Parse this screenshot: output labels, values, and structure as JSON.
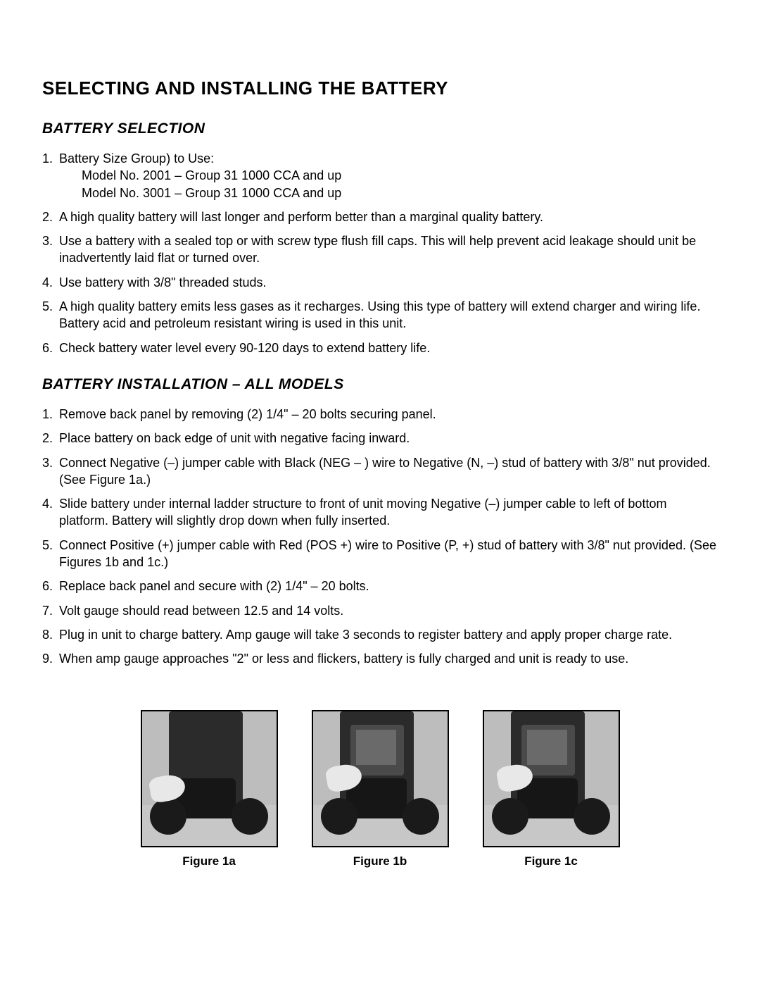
{
  "page": {
    "title": "SELECTING AND INSTALLING THE BATTERY"
  },
  "section1": {
    "heading": "BATTERY SELECTION",
    "items": [
      {
        "text": "Battery Size Group) to Use:",
        "sub": [
          "Model No. 2001 – Group 31 1000 CCA and up",
          "Model No. 3001 – Group 31 1000 CCA and up"
        ]
      },
      {
        "text": "A high quality battery will last longer and perform better than a marginal quality battery."
      },
      {
        "text": "Use a battery with a sealed top or with screw type flush fill caps. This will help prevent acid leakage should unit be inadvertently laid flat or turned over."
      },
      {
        "text": "Use battery with 3/8\" threaded studs."
      },
      {
        "text": "A high quality battery emits less gases as it recharges. Using this type of battery will extend charger and wiring life. Battery acid and petroleum resistant wiring is used in this unit."
      },
      {
        "text": "Check battery water level every 90-120 days to extend battery life."
      }
    ]
  },
  "section2": {
    "heading": "BATTERY INSTALLATION – ALL MODELS",
    "items": [
      {
        "text": "Remove back panel by removing (2) 1/4\" – 20 bolts securing panel."
      },
      {
        "text": "Place battery on back edge of unit with negative facing inward."
      },
      {
        "text": "Connect Negative (–) jumper cable with Black (NEG – ) wire to Negative (N, –) stud of battery with 3/8\" nut provided. (See Figure 1a.)"
      },
      {
        "text": "Slide battery under internal ladder structure to front of unit moving Negative (–) jumper cable to left of bottom platform. Battery will slightly drop down when fully inserted."
      },
      {
        "text": "Connect Positive (+) jumper cable with Red (POS +) wire to Positive (P, +) stud of battery with 3/8\" nut provided. (See Figures 1b and 1c.)"
      },
      {
        "text": "Replace back panel and secure with (2) 1/4\" – 20 bolts."
      },
      {
        "text": "Volt gauge should read between 12.5 and 14 volts."
      },
      {
        "text": "Plug in unit to charge battery. Amp gauge will take 3 seconds to register battery and apply proper charge rate."
      },
      {
        "text": "When amp gauge approaches \"2\" or less and flickers, battery is fully charged and unit is ready to use."
      }
    ]
  },
  "figures": {
    "a": {
      "caption": "Figure 1a"
    },
    "b": {
      "caption": "Figure 1b"
    },
    "c": {
      "caption": "Figure 1c"
    }
  }
}
